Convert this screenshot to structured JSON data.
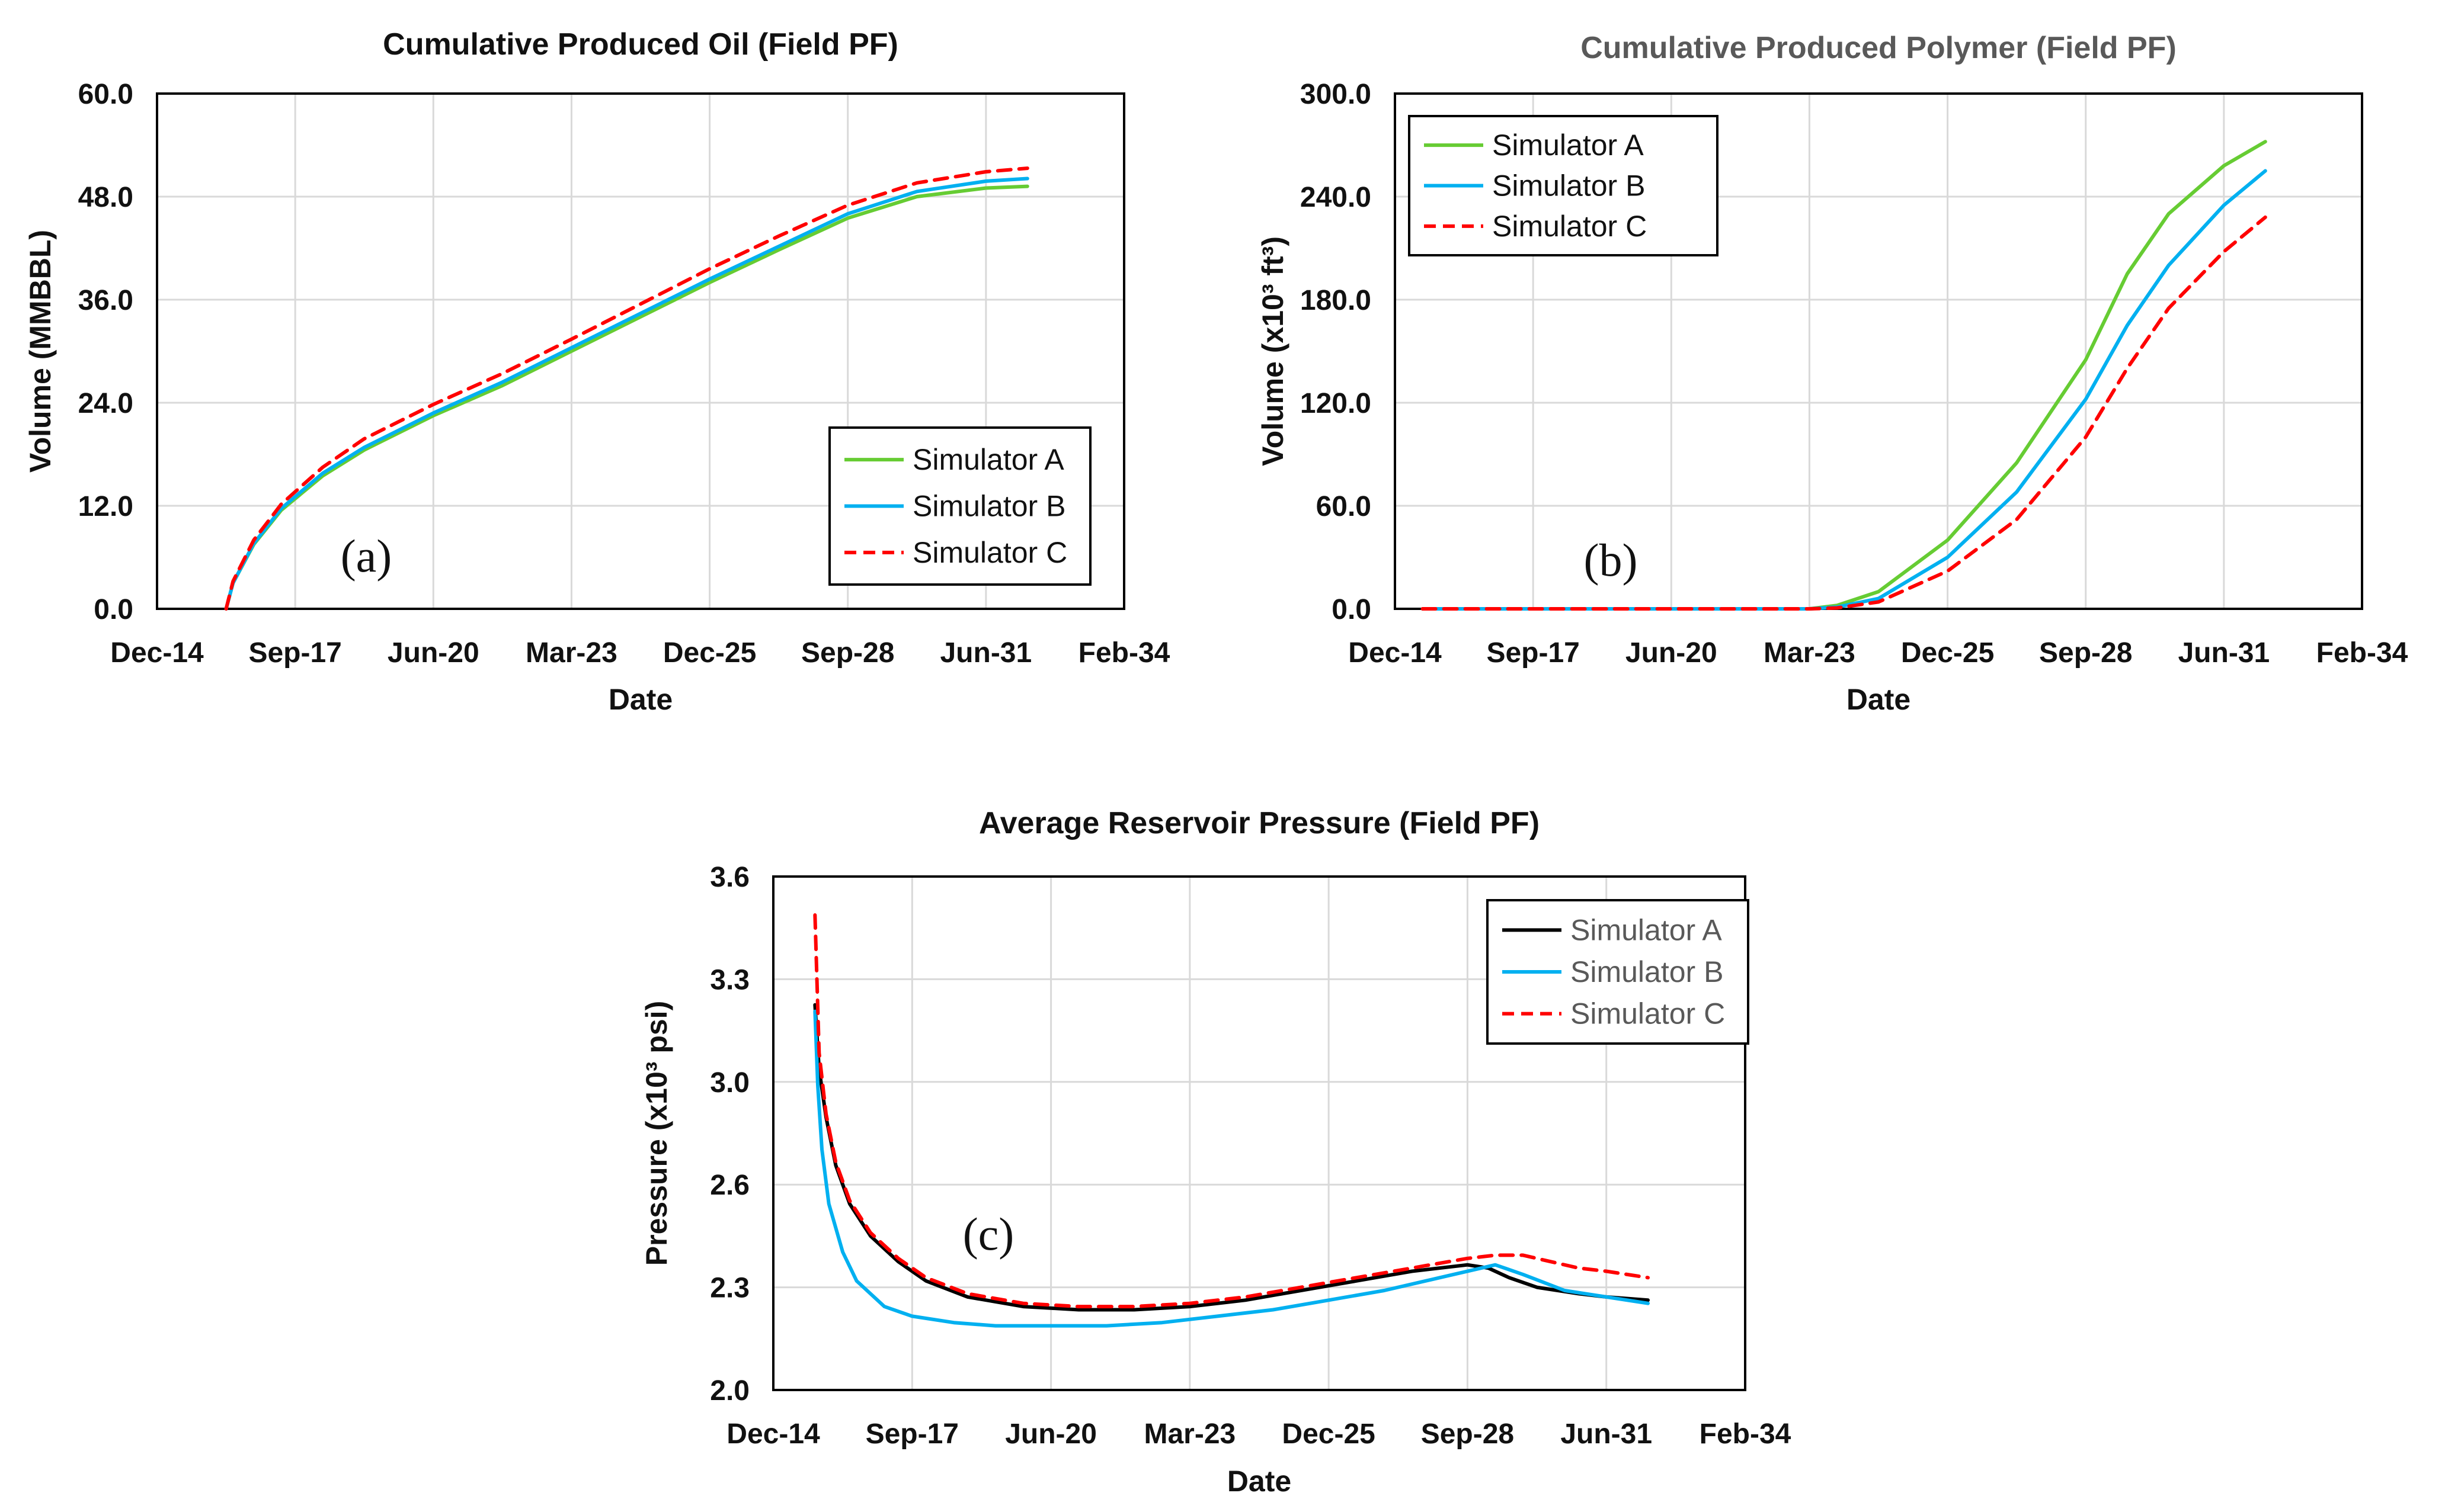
{
  "chart_data": [
    {
      "id": "a",
      "type": "line",
      "title": "Cumulative Produced Oil (Field PF)",
      "xlabel": "Date",
      "ylabel": "Volume (MMBBL)",
      "panel_label": "(a)",
      "x_ticks": [
        "Dec-14",
        "Sep-17",
        "Jun-20",
        "Mar-23",
        "Dec-25",
        "Sep-28",
        "Jun-31",
        "Feb-34"
      ],
      "y_ticks": [
        "0.0",
        "12.0",
        "24.0",
        "36.0",
        "48.0",
        "60.0"
      ],
      "xlim": [
        0,
        7
      ],
      "ylim": [
        0,
        60
      ],
      "legend": "bottom-right",
      "series": [
        {
          "name": "Simulator A",
          "color": "#66cc33",
          "dash": "solid",
          "x": [
            0.5,
            0.55,
            0.7,
            0.9,
            1.2,
            1.5,
            2.0,
            2.5,
            3.0,
            3.5,
            4.0,
            4.5,
            5.0,
            5.5,
            6.0,
            6.3
          ],
          "y": [
            0,
            3,
            7.5,
            11.5,
            15.5,
            18.5,
            22.5,
            26,
            30,
            34,
            38,
            41.8,
            45.5,
            48,
            49,
            49.2
          ]
        },
        {
          "name": "Simulator B",
          "color": "#00b0f0",
          "dash": "solid",
          "x": [
            0.5,
            0.55,
            0.7,
            0.9,
            1.2,
            1.5,
            2.0,
            2.5,
            3.0,
            3.5,
            4.0,
            4.5,
            5.0,
            5.5,
            6.0,
            6.3
          ],
          "y": [
            0,
            3,
            7.6,
            11.7,
            15.8,
            18.8,
            22.8,
            26.4,
            30.4,
            34.4,
            38.4,
            42.2,
            46,
            48.6,
            49.8,
            50.1
          ]
        },
        {
          "name": "Simulator C",
          "color": "#ff0000",
          "dash": "dashed",
          "x": [
            0.5,
            0.55,
            0.7,
            0.9,
            1.2,
            1.5,
            2.0,
            2.5,
            3.0,
            3.5,
            4.0,
            4.5,
            5.0,
            5.5,
            6.0,
            6.3
          ],
          "y": [
            0,
            3.2,
            8,
            12.2,
            16.5,
            19.8,
            23.8,
            27.4,
            31.4,
            35.5,
            39.6,
            43.4,
            47,
            49.6,
            50.9,
            51.3
          ]
        }
      ]
    },
    {
      "id": "b",
      "type": "line",
      "title": "Cumulative Produced Polymer (Field PF)",
      "xlabel": "Date",
      "ylabel": "Volume (x10³ ft³)",
      "panel_label": "(b)",
      "x_ticks": [
        "Dec-14",
        "Sep-17",
        "Jun-20",
        "Mar-23",
        "Dec-25",
        "Sep-28",
        "Jun-31",
        "Feb-34"
      ],
      "y_ticks": [
        "0.0",
        "60.0",
        "120.0",
        "180.0",
        "240.0",
        "300.0"
      ],
      "xlim": [
        0,
        7
      ],
      "ylim": [
        0,
        300
      ],
      "legend": "top-left",
      "series": [
        {
          "name": "Simulator A",
          "color": "#66cc33",
          "dash": "solid",
          "x": [
            0.2,
            2.5,
            3.0,
            3.2,
            3.5,
            4.0,
            4.5,
            5.0,
            5.3,
            5.6,
            6.0,
            6.3
          ],
          "y": [
            0,
            0,
            0,
            2,
            10,
            40,
            85,
            145,
            195,
            230,
            258,
            272
          ]
        },
        {
          "name": "Simulator B",
          "color": "#00b0f0",
          "dash": "solid",
          "x": [
            0.2,
            2.5,
            3.0,
            3.2,
            3.5,
            4.0,
            4.5,
            5.0,
            5.3,
            5.6,
            6.0,
            6.3
          ],
          "y": [
            0,
            0,
            0,
            1,
            6,
            30,
            68,
            122,
            165,
            200,
            235,
            255
          ]
        },
        {
          "name": "Simulator C",
          "color": "#ff0000",
          "dash": "dashed",
          "x": [
            0.2,
            2.5,
            3.0,
            3.2,
            3.5,
            4.0,
            4.5,
            5.0,
            5.3,
            5.6,
            6.0,
            6.3
          ],
          "y": [
            0,
            0,
            0,
            0.5,
            4,
            22,
            52,
            100,
            140,
            175,
            208,
            228
          ]
        }
      ]
    },
    {
      "id": "c",
      "type": "line",
      "title": "Average Reservoir Pressure (Field PF)",
      "xlabel": "Date",
      "ylabel": "Pressure (x10³ psi)",
      "panel_label": "(c)",
      "x_ticks": [
        "Dec-14",
        "Sep-17",
        "Jun-20",
        "Mar-23",
        "Dec-25",
        "Sep-28",
        "Jun-31",
        "Feb-34"
      ],
      "y_ticks": [
        "2.0",
        "2.3",
        "2.6",
        "3.0",
        "3.3",
        "3.6"
      ],
      "xlim": [
        0,
        7
      ],
      "ylim": [
        2.0,
        3.6
      ],
      "legend": "top-right",
      "series": [
        {
          "name": "Simulator A",
          "color": "#000000",
          "dash": "solid",
          "x": [
            0.3,
            0.33,
            0.38,
            0.45,
            0.55,
            0.7,
            0.9,
            1.1,
            1.4,
            1.8,
            2.2,
            2.6,
            3.0,
            3.4,
            3.8,
            4.2,
            4.6,
            5.0,
            5.15,
            5.3,
            5.5,
            5.8,
            6.0,
            6.3
          ],
          "y": [
            3.2,
            3.0,
            2.85,
            2.7,
            2.58,
            2.48,
            2.4,
            2.34,
            2.29,
            2.26,
            2.25,
            2.25,
            2.26,
            2.28,
            2.31,
            2.34,
            2.37,
            2.39,
            2.38,
            2.35,
            2.32,
            2.3,
            2.29,
            2.28
          ]
        },
        {
          "name": "Simulator B",
          "color": "#00b0f0",
          "dash": "solid",
          "x": [
            0.3,
            0.32,
            0.35,
            0.4,
            0.5,
            0.6,
            0.8,
            1.0,
            1.3,
            1.6,
            2.0,
            2.4,
            2.8,
            3.2,
            3.6,
            4.0,
            4.4,
            4.8,
            5.1,
            5.2,
            5.4,
            5.7,
            6.0,
            6.3
          ],
          "y": [
            3.18,
            2.95,
            2.75,
            2.58,
            2.43,
            2.34,
            2.26,
            2.23,
            2.21,
            2.2,
            2.2,
            2.2,
            2.21,
            2.23,
            2.25,
            2.28,
            2.31,
            2.35,
            2.38,
            2.39,
            2.36,
            2.31,
            2.29,
            2.27
          ]
        },
        {
          "name": "Simulator C",
          "color": "#ff0000",
          "dash": "dashed",
          "x": [
            0.3,
            0.33,
            0.38,
            0.45,
            0.55,
            0.7,
            0.9,
            1.1,
            1.4,
            1.8,
            2.2,
            2.6,
            3.0,
            3.4,
            3.8,
            4.2,
            4.6,
            5.0,
            5.2,
            5.4,
            5.6,
            5.8,
            6.0,
            6.3
          ],
          "y": [
            3.48,
            3.05,
            2.86,
            2.71,
            2.59,
            2.49,
            2.41,
            2.35,
            2.3,
            2.27,
            2.26,
            2.26,
            2.27,
            2.29,
            2.32,
            2.35,
            2.38,
            2.41,
            2.42,
            2.42,
            2.4,
            2.38,
            2.37,
            2.35
          ]
        }
      ]
    }
  ]
}
